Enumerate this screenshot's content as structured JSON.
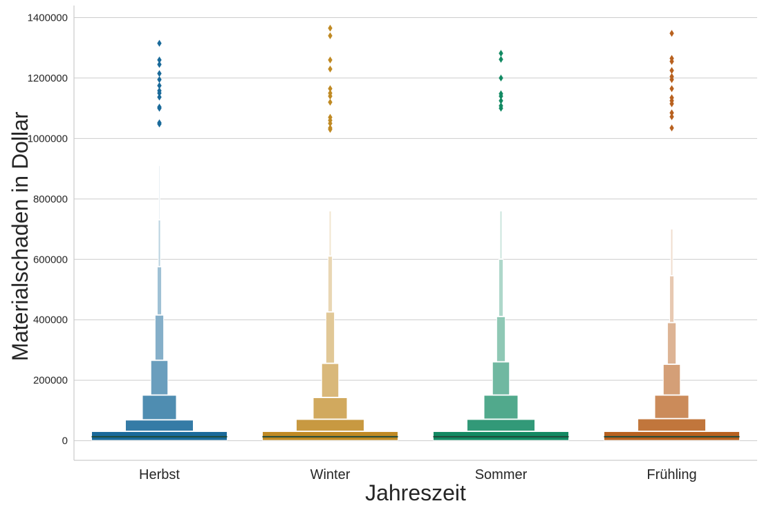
{
  "chart_data": {
    "type": "boxen",
    "title": "",
    "xlabel": "Jahreszeit",
    "ylabel": "Materialschaden in Dollar",
    "ylim": [
      -65000,
      1440000
    ],
    "yticks": [
      0,
      200000,
      400000,
      600000,
      800000,
      1000000,
      1200000,
      1400000
    ],
    "ytick_labels": [
      "0",
      "200000",
      "400000",
      "600000",
      "800000",
      "1000000",
      "1200000",
      "1400000"
    ],
    "grid": "horizontal",
    "legend": "none",
    "categories": [
      "Herbst",
      "Winter",
      "Sommer",
      "Frühling"
    ],
    "colors": [
      "#1a6a9a",
      "#c08a24",
      "#138a63",
      "#b8611f"
    ],
    "median_color": "#1f4a3a",
    "series": [
      {
        "category": "Herbst",
        "median": 13000,
        "letter_values": [
          [
            1000,
            30000
          ],
          [
            32000,
            68000
          ],
          [
            70000,
            150000
          ],
          [
            152000,
            265000
          ],
          [
            267000,
            415000
          ],
          [
            417000,
            575000
          ],
          [
            577000,
            730000
          ],
          [
            732000,
            910000
          ]
        ],
        "outliers": [
          1048000,
          1052000,
          1100000,
          1104000,
          1137000,
          1150000,
          1158000,
          1175000,
          1195000,
          1215000,
          1245000,
          1260000,
          1315000
        ]
      },
      {
        "category": "Winter",
        "median": 13000,
        "letter_values": [
          [
            1000,
            30000
          ],
          [
            32000,
            70000
          ],
          [
            72000,
            142000
          ],
          [
            144000,
            255000
          ],
          [
            257000,
            425000
          ],
          [
            427000,
            610000
          ],
          [
            612000,
            760000
          ]
        ],
        "outliers": [
          1030000,
          1035000,
          1050000,
          1060000,
          1070000,
          1120000,
          1140000,
          1150000,
          1165000,
          1230000,
          1260000,
          1340000,
          1365000
        ]
      },
      {
        "category": "Sommer",
        "median": 13000,
        "letter_values": [
          [
            1000,
            30000
          ],
          [
            32000,
            70000
          ],
          [
            72000,
            150000
          ],
          [
            152000,
            260000
          ],
          [
            262000,
            410000
          ],
          [
            412000,
            600000
          ],
          [
            602000,
            760000
          ]
        ],
        "outliers": [
          1100000,
          1108000,
          1125000,
          1140000,
          1148000,
          1200000,
          1262000,
          1282000
        ]
      },
      {
        "category": "Frühling",
        "median": 13000,
        "letter_values": [
          [
            1000,
            30000
          ],
          [
            32000,
            72000
          ],
          [
            74000,
            150000
          ],
          [
            152000,
            252000
          ],
          [
            254000,
            390000
          ],
          [
            392000,
            545000
          ],
          [
            547000,
            700000
          ]
        ],
        "outliers": [
          1035000,
          1072000,
          1085000,
          1115000,
          1125000,
          1135000,
          1165000,
          1195000,
          1205000,
          1225000,
          1255000,
          1265000,
          1348000
        ]
      }
    ]
  }
}
